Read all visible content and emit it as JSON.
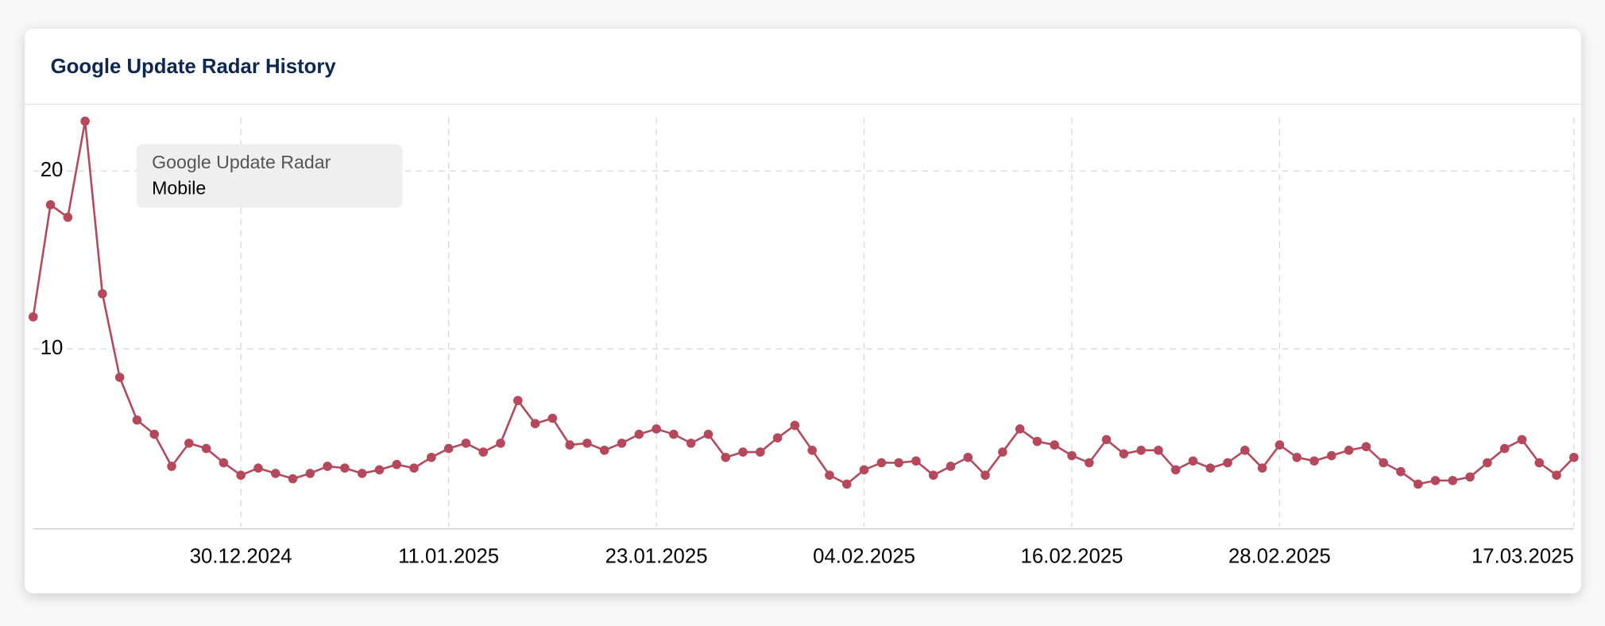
{
  "chart_data": {
    "type": "line",
    "title": "Google Update Radar History",
    "legend_title": "Google Update Radar",
    "x": [
      "18.12.2024",
      "19.12.2024",
      "20.12.2024",
      "21.12.2024",
      "22.12.2024",
      "23.12.2024",
      "24.12.2024",
      "25.12.2024",
      "26.12.2024",
      "27.12.2024",
      "28.12.2024",
      "29.12.2024",
      "30.12.2024",
      "31.12.2024",
      "01.01.2025",
      "02.01.2025",
      "03.01.2025",
      "04.01.2025",
      "05.01.2025",
      "06.01.2025",
      "07.01.2025",
      "08.01.2025",
      "09.01.2025",
      "10.01.2025",
      "11.01.2025",
      "12.01.2025",
      "13.01.2025",
      "14.01.2025",
      "15.01.2025",
      "16.01.2025",
      "17.01.2025",
      "18.01.2025",
      "19.01.2025",
      "20.01.2025",
      "21.01.2025",
      "22.01.2025",
      "23.01.2025",
      "24.01.2025",
      "25.01.2025",
      "26.01.2025",
      "27.01.2025",
      "28.01.2025",
      "29.01.2025",
      "30.01.2025",
      "31.01.2025",
      "01.02.2025",
      "02.02.2025",
      "03.02.2025",
      "04.02.2025",
      "05.02.2025",
      "06.02.2025",
      "07.02.2025",
      "08.02.2025",
      "09.02.2025",
      "10.02.2025",
      "11.02.2025",
      "12.02.2025",
      "13.02.2025",
      "14.02.2025",
      "15.02.2025",
      "16.02.2025",
      "17.02.2025",
      "18.02.2025",
      "19.02.2025",
      "20.02.2025",
      "21.02.2025",
      "22.02.2025",
      "23.02.2025",
      "24.02.2025",
      "25.02.2025",
      "26.02.2025",
      "27.02.2025",
      "28.02.2025",
      "01.03.2025",
      "02.03.2025",
      "03.03.2025",
      "04.03.2025",
      "05.03.2025",
      "06.03.2025",
      "07.03.2025",
      "08.03.2025",
      "09.03.2025",
      "10.03.2025",
      "11.03.2025",
      "12.03.2025",
      "13.03.2025",
      "14.03.2025",
      "15.03.2025",
      "16.03.2025",
      "17.03.2025"
    ],
    "series": [
      {
        "name": "Mobile",
        "color": "#b5485a",
        "values": [
          11.8,
          18.1,
          17.4,
          22.8,
          13.1,
          8.4,
          6.0,
          5.2,
          3.4,
          4.7,
          4.4,
          3.6,
          2.9,
          3.3,
          3.0,
          2.7,
          3.0,
          3.4,
          3.3,
          3.0,
          3.2,
          3.5,
          3.3,
          3.9,
          4.4,
          4.7,
          4.2,
          4.7,
          7.1,
          5.8,
          6.1,
          4.6,
          4.7,
          4.3,
          4.7,
          5.2,
          5.5,
          5.2,
          4.7,
          5.2,
          3.9,
          4.2,
          4.2,
          5.0,
          5.7,
          4.3,
          2.9,
          2.4,
          3.2,
          3.6,
          3.6,
          3.7,
          2.9,
          3.4,
          3.9,
          2.9,
          4.2,
          5.5,
          4.8,
          4.6,
          4.0,
          3.6,
          4.9,
          4.1,
          4.3,
          4.3,
          3.2,
          3.7,
          3.3,
          3.6,
          4.3,
          3.3,
          4.6,
          3.9,
          3.7,
          4.0,
          4.3,
          4.5,
          3.6,
          3.1,
          2.4,
          2.6,
          2.6,
          2.8,
          3.6,
          4.4,
          4.9,
          3.6,
          2.9,
          3.9
        ]
      }
    ],
    "xticks": [
      "30.12.2024",
      "11.01.2025",
      "23.01.2025",
      "04.02.2025",
      "16.02.2025",
      "28.02.2025",
      "17.03.2025"
    ],
    "ylim": [
      0,
      23
    ],
    "yticks": [
      10,
      20
    ],
    "grid": true
  }
}
